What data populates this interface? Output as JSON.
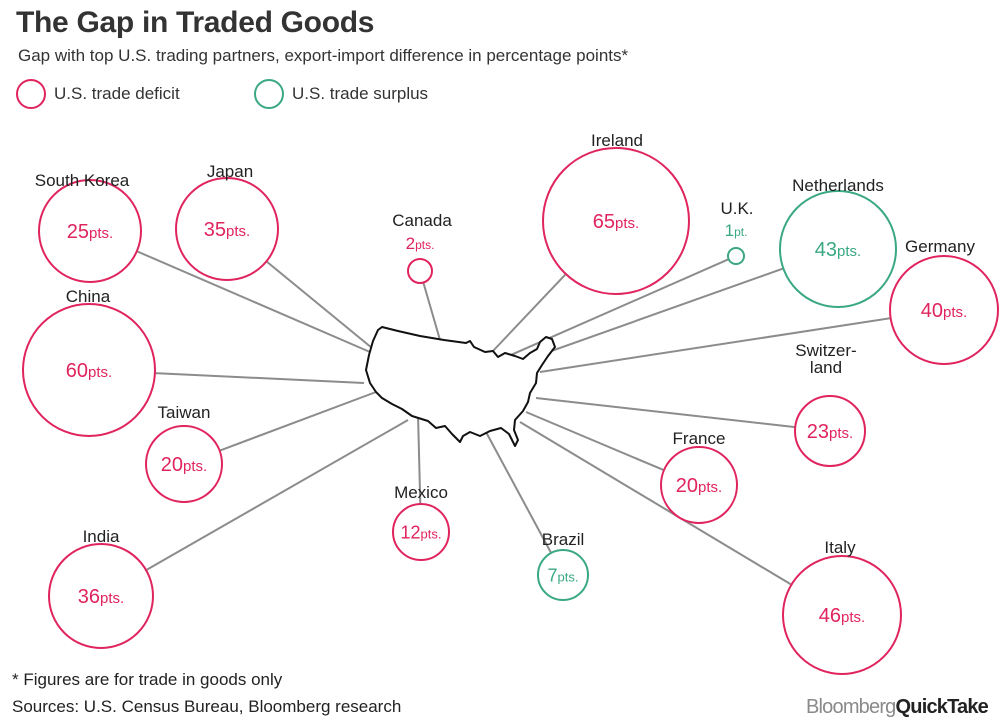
{
  "header": {
    "title": "The Gap in Traded Goods",
    "subtitle": "Gap with top U.S. trading partners, export-import difference in percentage points*"
  },
  "legend": [
    {
      "label": "U.S. trade deficit",
      "color": "#e0245e"
    },
    {
      "label": "U.S. trade surplus",
      "color": "#3aa882"
    }
  ],
  "chart_data": {
    "type": "bubble-map",
    "unit_label": "pts.",
    "unit_label_single": "pt.",
    "countries": [
      {
        "name": "South Korea",
        "value": 25,
        "type": "deficit"
      },
      {
        "name": "Japan",
        "value": 35,
        "type": "deficit"
      },
      {
        "name": "Canada",
        "value": 2,
        "type": "deficit"
      },
      {
        "name": "Ireland",
        "value": 65,
        "type": "deficit"
      },
      {
        "name": "U.K.",
        "value": 1,
        "type": "surplus"
      },
      {
        "name": "Netherlands",
        "value": 43,
        "type": "surplus"
      },
      {
        "name": "Germany",
        "value": 40,
        "type": "deficit"
      },
      {
        "name": "China",
        "value": 60,
        "type": "deficit"
      },
      {
        "name": "Switzer-\nland",
        "value": 23,
        "type": "deficit"
      },
      {
        "name": "Taiwan",
        "value": 20,
        "type": "deficit"
      },
      {
        "name": "France",
        "value": 20,
        "type": "deficit"
      },
      {
        "name": "Mexico",
        "value": 12,
        "type": "deficit"
      },
      {
        "name": "Brazil",
        "value": 7,
        "type": "surplus"
      },
      {
        "name": "India",
        "value": 36,
        "type": "deficit"
      },
      {
        "name": "Italy",
        "value": 46,
        "type": "deficit"
      }
    ]
  },
  "footer": {
    "note": "* Figures are for trade in goods only",
    "sources": "Sources: U.S. Census Bureau, Bloomberg research",
    "brand_a": "Bloomberg",
    "brand_b": "QuickTake"
  }
}
